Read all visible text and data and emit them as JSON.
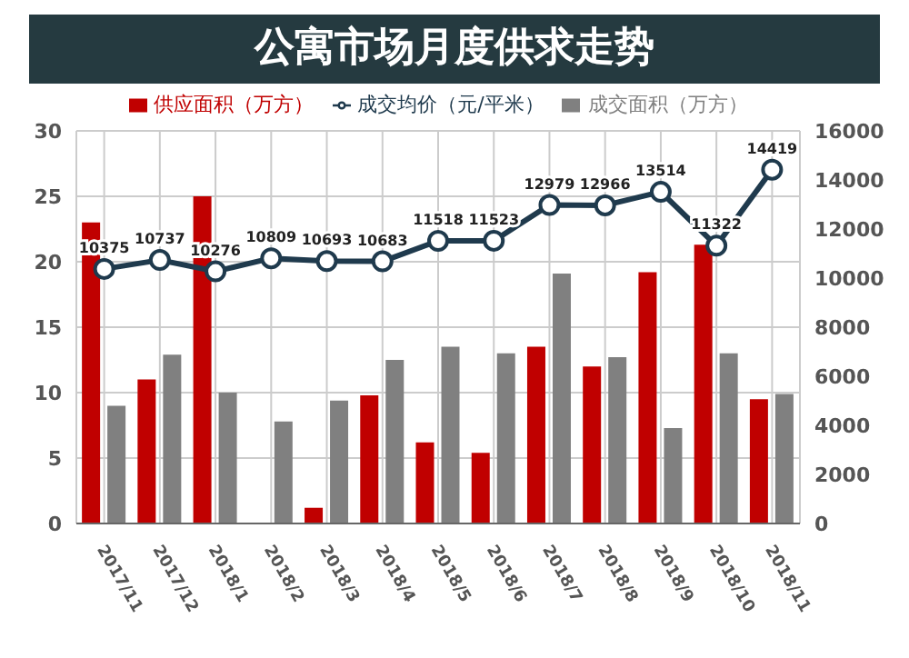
{
  "chart_data": {
    "type": "bar",
    "title": "公寓市场月度供求走势",
    "categories": [
      "2017/11",
      "2017/12",
      "2018/1",
      "2018/2",
      "2018/3",
      "2018/4",
      "2018/5",
      "2018/6",
      "2018/7",
      "2018/8",
      "2018/9",
      "2018/10",
      "2018/11"
    ],
    "series": [
      {
        "name": "供应面积（万方）",
        "color": "#c00000",
        "values": [
          23,
          11,
          25,
          0,
          1.2,
          9.8,
          6.2,
          5.4,
          13.5,
          12,
          19.2,
          21.3,
          9.5
        ]
      },
      {
        "name": "成交面积（万方）",
        "color": "#808080",
        "values": [
          9,
          12.9,
          10,
          7.8,
          9.4,
          12.5,
          13.5,
          13,
          19.1,
          12.7,
          7.3,
          13,
          9.9
        ]
      },
      {
        "name": "成交均价（元/平米）",
        "type": "line",
        "axis": "y2",
        "color": "#1f3a4d",
        "marker": "circle",
        "values": [
          10375,
          10737,
          10276,
          10809,
          10693,
          10683,
          11518,
          11523,
          12979,
          12966,
          13514,
          11322,
          14419
        ],
        "value_labels": [
          "10375",
          "10737",
          "10276",
          "10809",
          "10693",
          "10683",
          "11518",
          "11523",
          "12979",
          "12966",
          "13514",
          "11322",
          "14419"
        ]
      }
    ],
    "ylim": [
      0,
      30
    ],
    "yticks": [
      0,
      5,
      10,
      15,
      20,
      25,
      30
    ],
    "y2lim": [
      0,
      16000
    ],
    "y2ticks": [
      0,
      2000,
      4000,
      6000,
      8000,
      10000,
      12000,
      14000,
      16000
    ],
    "grid": true,
    "legend": "top"
  }
}
